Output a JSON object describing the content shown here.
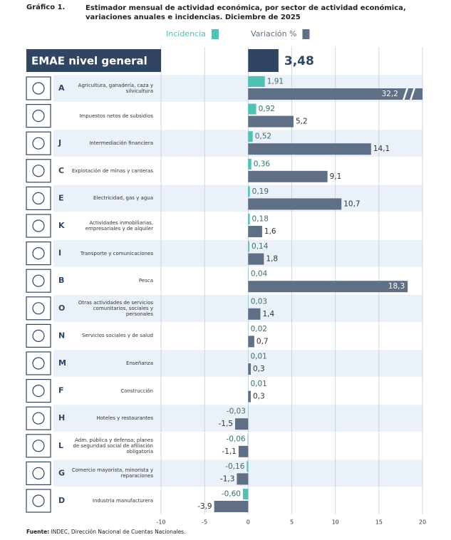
{
  "chart_data": {
    "type": "bar",
    "label": "Gráfico 1.",
    "title": "Estimador mensual de actividad económica, por sector de actividad económica, variaciones anuales e incidencias. Diciembre de 2025",
    "general": {
      "label": "EMAE nivel general",
      "value": 3.48,
      "value_label": "3,48",
      "color": "#2f4561"
    },
    "codes": [
      "A",
      null,
      "J",
      "C",
      "E",
      "K",
      "I",
      "B",
      "O",
      "N",
      "M",
      "F",
      "H",
      "L",
      "G",
      "D"
    ],
    "categories": [
      "Agricultura, ganadería, caza y silvicultura",
      "Impuestos netos de subsidios",
      "Intermediación financiera",
      "Explotación de minas y canteras",
      "Electricidad, gas y agua",
      "Actividades inmobiliarias, empresariales y de alquiler",
      "Transporte y comunicaciones",
      "Pesca",
      "Otras actividades de servicios comunitarios, sociales y personales",
      "Servicios sociales y de salud",
      "Enseñanza",
      "Construcción",
      "Hoteles y restaurantes",
      "Adm. pública y defensa; planes de seguridad social de afiliación obligatoria",
      "Comercio mayorista, minorista y reparaciones",
      "Industria manufacturera"
    ],
    "series": [
      {
        "name": "Incidencia",
        "color": "#4ec3b5",
        "values": [
          1.91,
          0.92,
          0.52,
          0.36,
          0.19,
          0.18,
          0.14,
          0.04,
          0.03,
          0.02,
          0.01,
          0.01,
          -0.03,
          -0.06,
          -0.16,
          -0.6
        ],
        "value_labels": [
          "1,91",
          "0,92",
          "0,52",
          "0,36",
          "0,19",
          "0,18",
          "0,14",
          "0,04",
          "0,03",
          "0,02",
          "0,01",
          "0,01",
          "-0,03",
          "-0,06",
          "-0,16",
          "-0,60"
        ]
      },
      {
        "name": "Variación %",
        "color": "#5f6f85",
        "values": [
          32.2,
          5.2,
          14.1,
          9.1,
          10.7,
          1.6,
          1.8,
          18.3,
          1.4,
          0.7,
          0.3,
          0.3,
          -1.5,
          -1.1,
          -1.3,
          -3.9
        ],
        "value_labels": [
          "32,2",
          "5,2",
          "14,1",
          "9,1",
          "10,7",
          "1,6",
          "1,8",
          "18,3",
          "1,4",
          "0,7",
          "0,3",
          "0,3",
          "-1,5",
          "-1,1",
          "-1,3",
          "-3,9"
        ]
      }
    ],
    "xlim": [
      -10,
      20
    ],
    "xticks": [
      -10,
      -5,
      0,
      5,
      10,
      15,
      20
    ],
    "grid": true,
    "source_label": "Fuente:",
    "source": "INDEC, Dirección Nacional de Cuentas Nacionales."
  }
}
